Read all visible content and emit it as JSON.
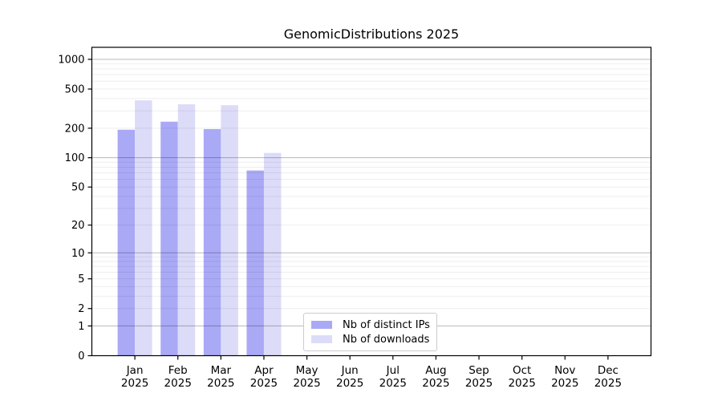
{
  "chart_data": {
    "type": "bar",
    "title": "GenomicDistributions 2025",
    "months": [
      "Jan",
      "Feb",
      "Mar",
      "Apr",
      "May",
      "Jun",
      "Jul",
      "Aug",
      "Sep",
      "Oct",
      "Nov",
      "Dec"
    ],
    "year": "2025",
    "series": [
      {
        "name": "Nb of distinct IPs",
        "color": "#a9a9f6",
        "values": [
          193,
          233,
          196,
          74,
          null,
          null,
          null,
          null,
          null,
          null,
          null,
          null
        ]
      },
      {
        "name": "Nb of downloads",
        "color": "#dcdcf9",
        "values": [
          384,
          350,
          343,
          112,
          null,
          null,
          null,
          null,
          null,
          null,
          null,
          null
        ]
      }
    ],
    "y_ticks": [
      0,
      1,
      2,
      5,
      10,
      20,
      50,
      100,
      200,
      500,
      1000
    ],
    "y_scale": "log1p",
    "ylim": [
      0,
      1350
    ],
    "grid": true,
    "legend_position": "lower center"
  },
  "colors": {
    "background": "#ffffff",
    "spine": "#000000",
    "text": "#000000",
    "grid_major": "rgba(0,0,0,0.28)",
    "grid_minor": "rgba(0,0,0,0.07)",
    "legend_border": "#cccccc"
  }
}
